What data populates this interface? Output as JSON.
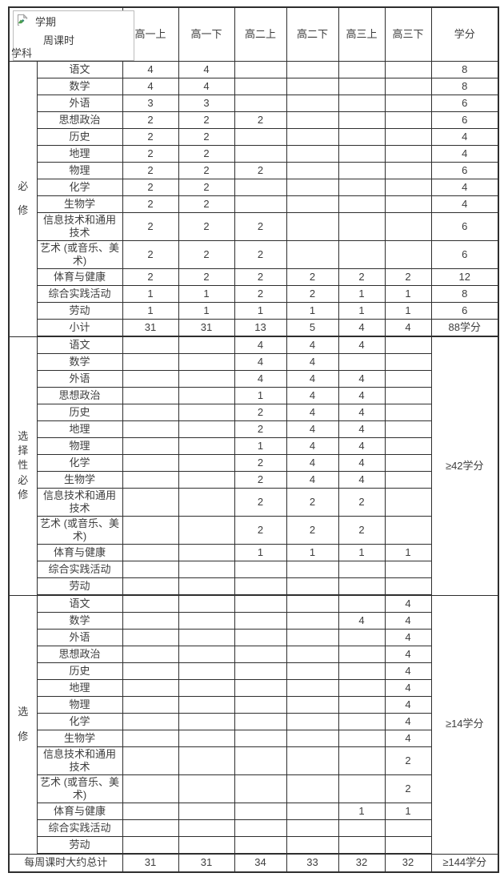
{
  "table": {
    "corner": {
      "semester_label": "学期",
      "weekly_hours_label": "周课时",
      "subject_label": "学科",
      "icon": "broken-image-icon"
    },
    "columns": [
      "高一上",
      "高一下",
      "高二上",
      "高二下",
      "高三上",
      "高三下",
      "学分"
    ],
    "sections": [
      {
        "name": "必修",
        "credit_mode": "per-row",
        "rows": [
          {
            "subject": "语文",
            "values": [
              "4",
              "4",
              "",
              "",
              "",
              ""
            ],
            "credit": "8"
          },
          {
            "subject": "数学",
            "values": [
              "4",
              "4",
              "",
              "",
              "",
              ""
            ],
            "credit": "8"
          },
          {
            "subject": "外语",
            "values": [
              "3",
              "3",
              "",
              "",
              "",
              ""
            ],
            "credit": "6"
          },
          {
            "subject": "思想政治",
            "values": [
              "2",
              "2",
              "2",
              "",
              "",
              ""
            ],
            "credit": "6"
          },
          {
            "subject": "历史",
            "values": [
              "2",
              "2",
              "",
              "",
              "",
              ""
            ],
            "credit": "4"
          },
          {
            "subject": "地理",
            "values": [
              "2",
              "2",
              "",
              "",
              "",
              ""
            ],
            "credit": "4"
          },
          {
            "subject": "物理",
            "values": [
              "2",
              "2",
              "2",
              "",
              "",
              ""
            ],
            "credit": "6"
          },
          {
            "subject": "化学",
            "values": [
              "2",
              "2",
              "",
              "",
              "",
              ""
            ],
            "credit": "4"
          },
          {
            "subject": "生物学",
            "values": [
              "2",
              "2",
              "",
              "",
              "",
              ""
            ],
            "credit": "4"
          },
          {
            "subject": "信息技术和通用技术",
            "values": [
              "2",
              "2",
              "2",
              "",
              "",
              ""
            ],
            "credit": "6"
          },
          {
            "subject": "艺术 (或音乐、美术)",
            "values": [
              "2",
              "2",
              "2",
              "",
              "",
              ""
            ],
            "credit": "6"
          },
          {
            "subject": "体育与健康",
            "values": [
              "2",
              "2",
              "2",
              "2",
              "2",
              "2"
            ],
            "credit": "12"
          },
          {
            "subject": "综合实践活动",
            "values": [
              "1",
              "1",
              "2",
              "2",
              "1",
              "1"
            ],
            "credit": "8"
          },
          {
            "subject": "劳动",
            "values": [
              "1",
              "1",
              "1",
              "1",
              "1",
              "1"
            ],
            "credit": "6"
          }
        ],
        "subtotal": {
          "label": "小计",
          "values": [
            "31",
            "31",
            "13",
            "5",
            "4",
            "4"
          ],
          "credit": "88学分"
        }
      },
      {
        "name": "选择性必修",
        "credit_mode": "merged",
        "merged_credit": "≥42学分",
        "rows": [
          {
            "subject": "语文",
            "values": [
              "",
              "",
              "4",
              "4",
              "4",
              ""
            ]
          },
          {
            "subject": "数学",
            "values": [
              "",
              "",
              "4",
              "4",
              "",
              ""
            ]
          },
          {
            "subject": "外语",
            "values": [
              "",
              "",
              "4",
              "4",
              "4",
              ""
            ]
          },
          {
            "subject": "思想政治",
            "values": [
              "",
              "",
              "1",
              "4",
              "4",
              ""
            ]
          },
          {
            "subject": "历史",
            "values": [
              "",
              "",
              "2",
              "4",
              "4",
              ""
            ]
          },
          {
            "subject": "地理",
            "values": [
              "",
              "",
              "2",
              "4",
              "4",
              ""
            ]
          },
          {
            "subject": "物理",
            "values": [
              "",
              "",
              "1",
              "4",
              "4",
              ""
            ]
          },
          {
            "subject": "化学",
            "values": [
              "",
              "",
              "2",
              "4",
              "4",
              ""
            ]
          },
          {
            "subject": "生物学",
            "values": [
              "",
              "",
              "2",
              "4",
              "4",
              ""
            ]
          },
          {
            "subject": "信息技术和通用技术",
            "values": [
              "",
              "",
              "2",
              "2",
              "2",
              ""
            ]
          },
          {
            "subject": "艺术 (或音乐、美术)",
            "values": [
              "",
              "",
              "2",
              "2",
              "2",
              ""
            ]
          },
          {
            "subject": "体育与健康",
            "values": [
              "",
              "",
              "1",
              "1",
              "1",
              "1"
            ]
          },
          {
            "subject": "综合实践活动",
            "values": [
              "",
              "",
              "",
              "",
              "",
              ""
            ]
          },
          {
            "subject": "劳动",
            "values": [
              "",
              "",
              "",
              "",
              "",
              ""
            ]
          }
        ]
      },
      {
        "name": "选修",
        "credit_mode": "merged",
        "merged_credit": "≥14学分",
        "rows": [
          {
            "subject": "语文",
            "values": [
              "",
              "",
              "",
              "",
              "",
              "4"
            ]
          },
          {
            "subject": "数学",
            "values": [
              "",
              "",
              "",
              "",
              "4",
              "4"
            ]
          },
          {
            "subject": "外语",
            "values": [
              "",
              "",
              "",
              "",
              "",
              "4"
            ]
          },
          {
            "subject": "思想政治",
            "values": [
              "",
              "",
              "",
              "",
              "",
              "4"
            ]
          },
          {
            "subject": "历史",
            "values": [
              "",
              "",
              "",
              "",
              "",
              "4"
            ]
          },
          {
            "subject": "地理",
            "values": [
              "",
              "",
              "",
              "",
              "",
              "4"
            ]
          },
          {
            "subject": "物理",
            "values": [
              "",
              "",
              "",
              "",
              "",
              "4"
            ]
          },
          {
            "subject": "化学",
            "values": [
              "",
              "",
              "",
              "",
              "",
              "4"
            ]
          },
          {
            "subject": "生物学",
            "values": [
              "",
              "",
              "",
              "",
              "",
              "4"
            ]
          },
          {
            "subject": "信息技术和通用技术",
            "values": [
              "",
              "",
              "",
              "",
              "",
              "2"
            ]
          },
          {
            "subject": "艺术 (或音乐、美术)",
            "values": [
              "",
              "",
              "",
              "",
              "",
              "2"
            ]
          },
          {
            "subject": "体育与健康",
            "values": [
              "",
              "",
              "",
              "",
              "1",
              "1"
            ]
          },
          {
            "subject": "综合实践活动",
            "values": [
              "",
              "",
              "",
              "",
              "",
              ""
            ]
          },
          {
            "subject": "劳动",
            "values": [
              "",
              "",
              "",
              "",
              "",
              ""
            ]
          }
        ]
      }
    ],
    "total_row": {
      "label": "每周课时大约总计",
      "values": [
        "31",
        "31",
        "34",
        "33",
        "32",
        "32"
      ],
      "credit": "≥144学分"
    },
    "colors": {
      "border": "#2e2e2e",
      "text": "#3d3d3d",
      "corner_box_border": "#bcbcbc"
    }
  }
}
